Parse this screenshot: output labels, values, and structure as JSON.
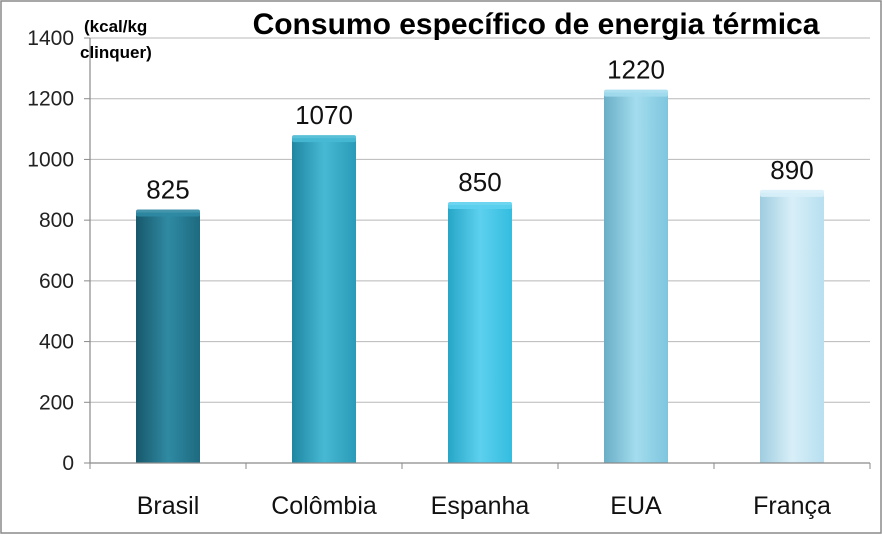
{
  "chart_data": {
    "type": "bar",
    "title": "Consumo específico de energia térmica",
    "unit_label": [
      "(kcal/kg",
      "clinquer)"
    ],
    "categories": [
      "Brasil",
      "Colômbia",
      "Espanha",
      "EUA",
      "França"
    ],
    "values": [
      825,
      1070,
      850,
      1220,
      890
    ],
    "data_labels": [
      "825",
      "1070",
      "850",
      "1220",
      "890"
    ],
    "ylim": [
      0,
      1400
    ],
    "yticks": [
      0,
      200,
      400,
      600,
      800,
      1000,
      1200,
      1400
    ],
    "grid": true,
    "legend": "none",
    "bar_colors": [
      [
        "#1e6a80",
        "#2f8aa3",
        "#17586b"
      ],
      [
        "#2a9bb8",
        "#47b9d4",
        "#1f86a1"
      ],
      [
        "#33bde0",
        "#5dd0ee",
        "#27a6c7"
      ],
      [
        "#7ec6de",
        "#a3dcee",
        "#6aaec6"
      ],
      [
        "#b7dff0",
        "#d8eff8",
        "#9fcde0"
      ]
    ]
  }
}
